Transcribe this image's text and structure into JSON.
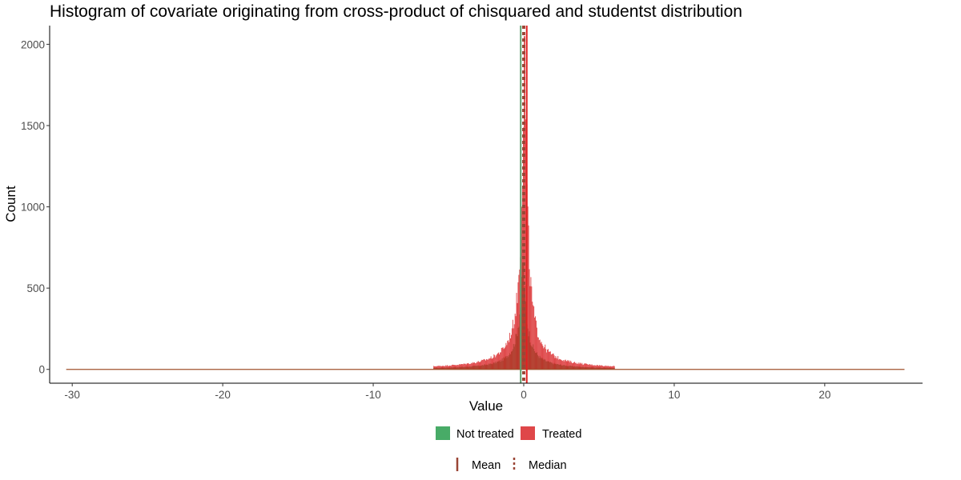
{
  "chart_data": {
    "type": "histogram",
    "title": "Histogram of covariate originating from cross-product of chisquared and studentst distribution",
    "xlabel": "Value",
    "ylabel": "Count",
    "xlim": [
      -31.5,
      26.5
    ],
    "ylim": [
      -85,
      2115
    ],
    "x_ticks": [
      -30,
      -20,
      -10,
      0,
      10,
      20
    ],
    "x_tick_labels": [
      "-30",
      "-20",
      "-10",
      "0",
      "10",
      "20"
    ],
    "y_ticks": [
      0,
      500,
      1000,
      1500,
      2000
    ],
    "y_tick_labels": [
      "0",
      "500",
      "1000",
      "1500",
      "2000"
    ],
    "data_range": [
      -30.4,
      25.3
    ],
    "grid": false,
    "bin_width": 0.05,
    "series": [
      {
        "name": "Not treated",
        "color": "#1a9641",
        "opacity": 0.8,
        "peak_x": -0.05,
        "peak_count": 640,
        "scale": 0.6,
        "mean": -0.2,
        "median": -0.05,
        "line_color": "#5f9e6e"
      },
      {
        "name": "Treated",
        "color": "#d7191c",
        "opacity": 0.8,
        "peak_x": 0.05,
        "peak_count": 2050,
        "scale": 0.45,
        "mean": 0.2,
        "median": 0.05,
        "line_color": "#e02020"
      }
    ],
    "legend": {
      "position": "bottom",
      "fill_entries": [
        "Not treated",
        "Treated"
      ],
      "line_entries": [
        {
          "label": "Mean",
          "linetype": "solid"
        },
        {
          "label": "Median",
          "linetype": "dashed"
        }
      ],
      "line_key_color": "#9a4535"
    }
  }
}
